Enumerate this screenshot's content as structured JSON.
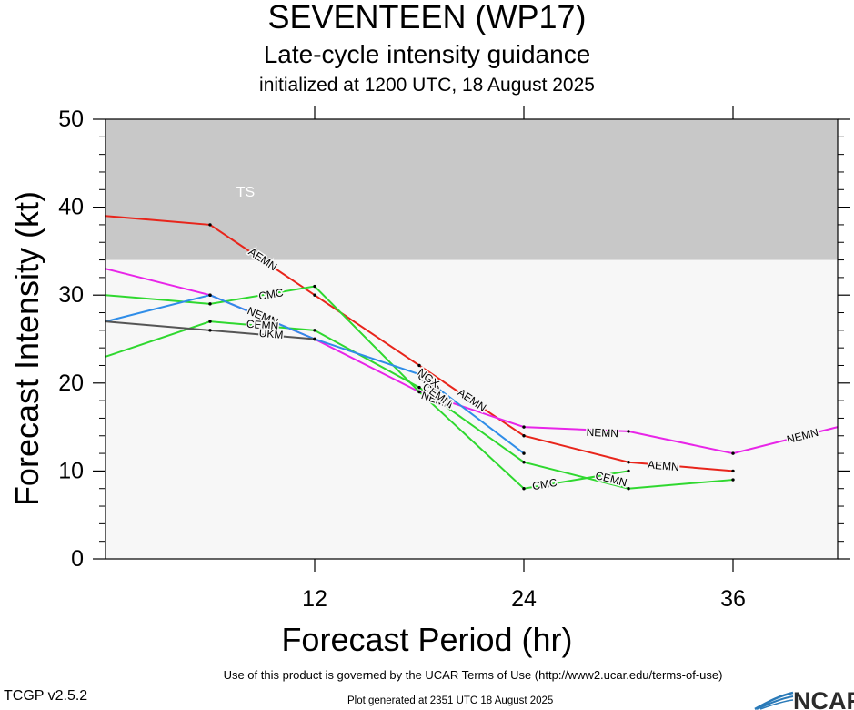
{
  "header": {
    "title": "SEVENTEEN (WP17)",
    "subtitle": "Late-cycle intensity guidance",
    "initialized": "initialized at 1200 UTC, 18 August 2025"
  },
  "footer": {
    "terms": "Use of this product is governed by the UCAR Terms of Use (http://www2.ucar.edu/terms-of-use)",
    "generated": "Plot generated at 2351 UTC   18 August 2025",
    "version": "TCGP v2.5.2",
    "logo_text": "NCAR"
  },
  "chart_data": {
    "type": "line",
    "title": "SEVENTEEN (WP17)",
    "xlabel": "Forecast Period (hr)",
    "ylabel": "Forecast Intensity (kt)",
    "xlim": [
      0,
      42
    ],
    "ylim": [
      0,
      50
    ],
    "xticks": [
      12,
      24,
      36
    ],
    "yticks": [
      0,
      10,
      20,
      30,
      40,
      50
    ],
    "bands": [
      {
        "label": "TS",
        "from": 34,
        "to": 50,
        "color": "#c8c8c8"
      }
    ],
    "background_color": "#f7f7f7",
    "series": [
      {
        "name": "AEMN",
        "color": "#e8251b",
        "x": [
          0,
          6,
          12,
          18,
          24,
          30,
          36
        ],
        "y": [
          39,
          38,
          30,
          22,
          14,
          11,
          10
        ],
        "labels": [
          {
            "x": 9,
            "y": 34
          },
          {
            "x": 21,
            "y": 18
          },
          {
            "x": 32,
            "y": 10.5
          }
        ]
      },
      {
        "name": "NEMN",
        "color": "#e825e8",
        "x": [
          0,
          6,
          12,
          18,
          24,
          30,
          36,
          42
        ],
        "y": [
          33,
          30,
          25,
          19,
          15,
          14.5,
          12,
          15
        ],
        "labels": [
          {
            "x": 9,
            "y": 27.5
          },
          {
            "x": 19,
            "y": 18
          },
          {
            "x": 28.5,
            "y": 14.25
          },
          {
            "x": 40,
            "y": 13.9
          }
        ]
      },
      {
        "name": "CMC",
        "color": "#2fd82f",
        "x": [
          0,
          6,
          12,
          18,
          24,
          30
        ],
        "y": [
          30,
          29,
          31,
          19,
          8,
          10
        ],
        "labels": [
          {
            "x": 9.5,
            "y": 30
          },
          {
            "x": 18.5,
            "y": 20
          },
          {
            "x": 25.2,
            "y": 8.4
          }
        ]
      },
      {
        "name": "CEMN",
        "color": "#2fd82f",
        "x": [
          0,
          6,
          12,
          18,
          24,
          30,
          36
        ],
        "y": [
          23,
          27,
          26,
          19.5,
          11,
          8,
          9
        ],
        "labels": [
          {
            "x": 9,
            "y": 26.5
          },
          {
            "x": 19,
            "y": 18.6
          },
          {
            "x": 29,
            "y": 9
          }
        ]
      },
      {
        "name": "NGX",
        "color": "#2f8de8",
        "x": [
          0,
          6,
          12,
          18,
          24
        ],
        "y": [
          27,
          30,
          25,
          21,
          12
        ],
        "labels": [
          {
            "x": 18.5,
            "y": 20.5
          }
        ]
      },
      {
        "name": "UKM",
        "color": "#555555",
        "x": [
          0,
          6,
          12
        ],
        "y": [
          27,
          26,
          25
        ],
        "labels": [
          {
            "x": 9.5,
            "y": 25.5
          }
        ]
      }
    ]
  }
}
